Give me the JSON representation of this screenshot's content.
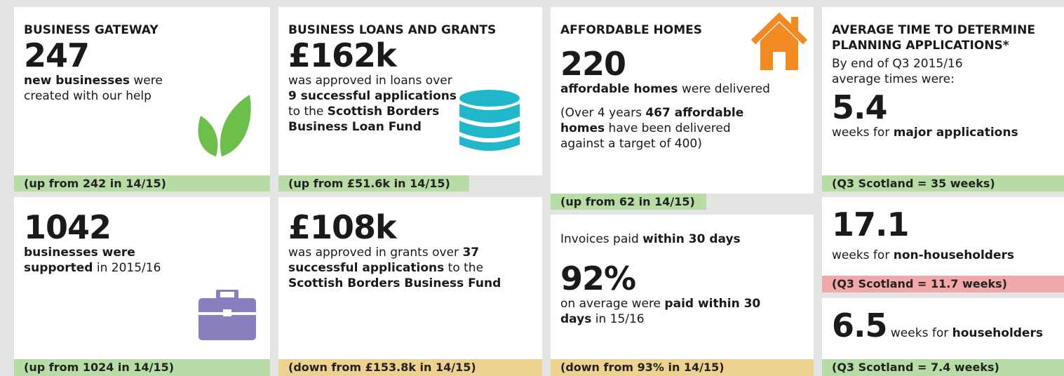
{
  "panels": [
    {
      "title": "BUSINESS GATEWAY",
      "figure": "247",
      "body": [
        "new businesses",
        " were created with our help"
      ],
      "footer": "(up from 242 in 14/15)"
    },
    {
      "figure": "1042",
      "body": [
        "businesses were supported",
        " in 2015/16"
      ],
      "footer": "(up from 1024 in 14/15)"
    },
    {
      "title": "BUSINESS LOANS AND GRANTS",
      "figure": "£162k",
      "body": [
        "was approved in loans over ",
        "9 successful applications",
        " to the ",
        "Scottish Borders Business Loan Fund"
      ],
      "footer": "(up from £51.6k in 14/15)"
    },
    {
      "figure": "£108k",
      "body": [
        "was approved in grants over ",
        "37 successful applications",
        " to the ",
        "Scottish Borders Business Fund"
      ],
      "footer": "(down from £153.8k in 14/15)"
    },
    {
      "title": "AFFORDABLE HOMES",
      "figure": "220",
      "body": [
        "affordable homes",
        " were delivered"
      ],
      "note": [
        "(Over 4 years ",
        "467 affordable homes",
        " have been delivered against a target of 400)"
      ],
      "footer": "(up from 62 in 14/15)"
    },
    {
      "intro": [
        "Invoices paid ",
        "within 30 days"
      ],
      "figure": "92%",
      "body": [
        "on average were ",
        "paid within 30 days",
        " in 15/16"
      ],
      "footer": "(down from 93% in 14/15)"
    }
  ],
  "planning": {
    "title": "AVERAGE TIME TO DETERMINE PLANNING APPLICATIONS*",
    "intro": "By end of Q3 2015/16 average times were:",
    "items": [
      {
        "figure": "5.4",
        "body": [
          "weeks for ",
          "major applications"
        ],
        "footer": "(Q3 Scotland = 35 weeks)"
      },
      {
        "figure": "17.1",
        "body": [
          "weeks for ",
          "non-householders"
        ],
        "footer": "(Q3 Scotland = 11.7 weeks)"
      },
      {
        "figure": "6.5",
        "body": [
          " weeks for ",
          "householders"
        ],
        "footer": "(Q3 Scotland = 7.4 weeks)"
      }
    ]
  }
}
